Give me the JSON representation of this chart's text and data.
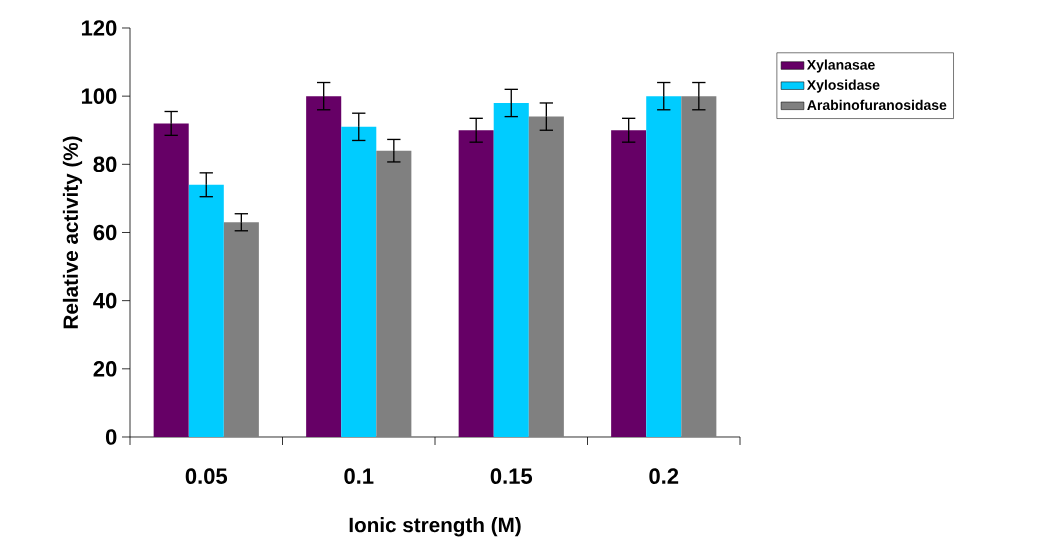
{
  "chart_data": {
    "type": "bar",
    "xlabel": "Ionic strength (M)",
    "ylabel": "Relative activity (%)",
    "categories": [
      "0.05",
      "0.1",
      "0.15",
      "0.2"
    ],
    "series": [
      {
        "name": "Xylanasae",
        "color": "#660066",
        "values": [
          92,
          100,
          90,
          90
        ],
        "errors": [
          3.5,
          4,
          3.5,
          3.5
        ]
      },
      {
        "name": "Xylosidase",
        "color": "#00ccff",
        "values": [
          74,
          91,
          98,
          100
        ],
        "errors": [
          3.5,
          4,
          4,
          4
        ]
      },
      {
        "name": "Arabinofuranosidase",
        "color": "#808080",
        "values": [
          63,
          84,
          94,
          100
        ],
        "errors": [
          2.5,
          3.3,
          4,
          4
        ]
      }
    ],
    "ylim": [
      0,
      120
    ],
    "yticks": [
      0,
      20,
      40,
      60,
      80,
      100,
      120
    ],
    "grid": false,
    "legend": "right"
  }
}
